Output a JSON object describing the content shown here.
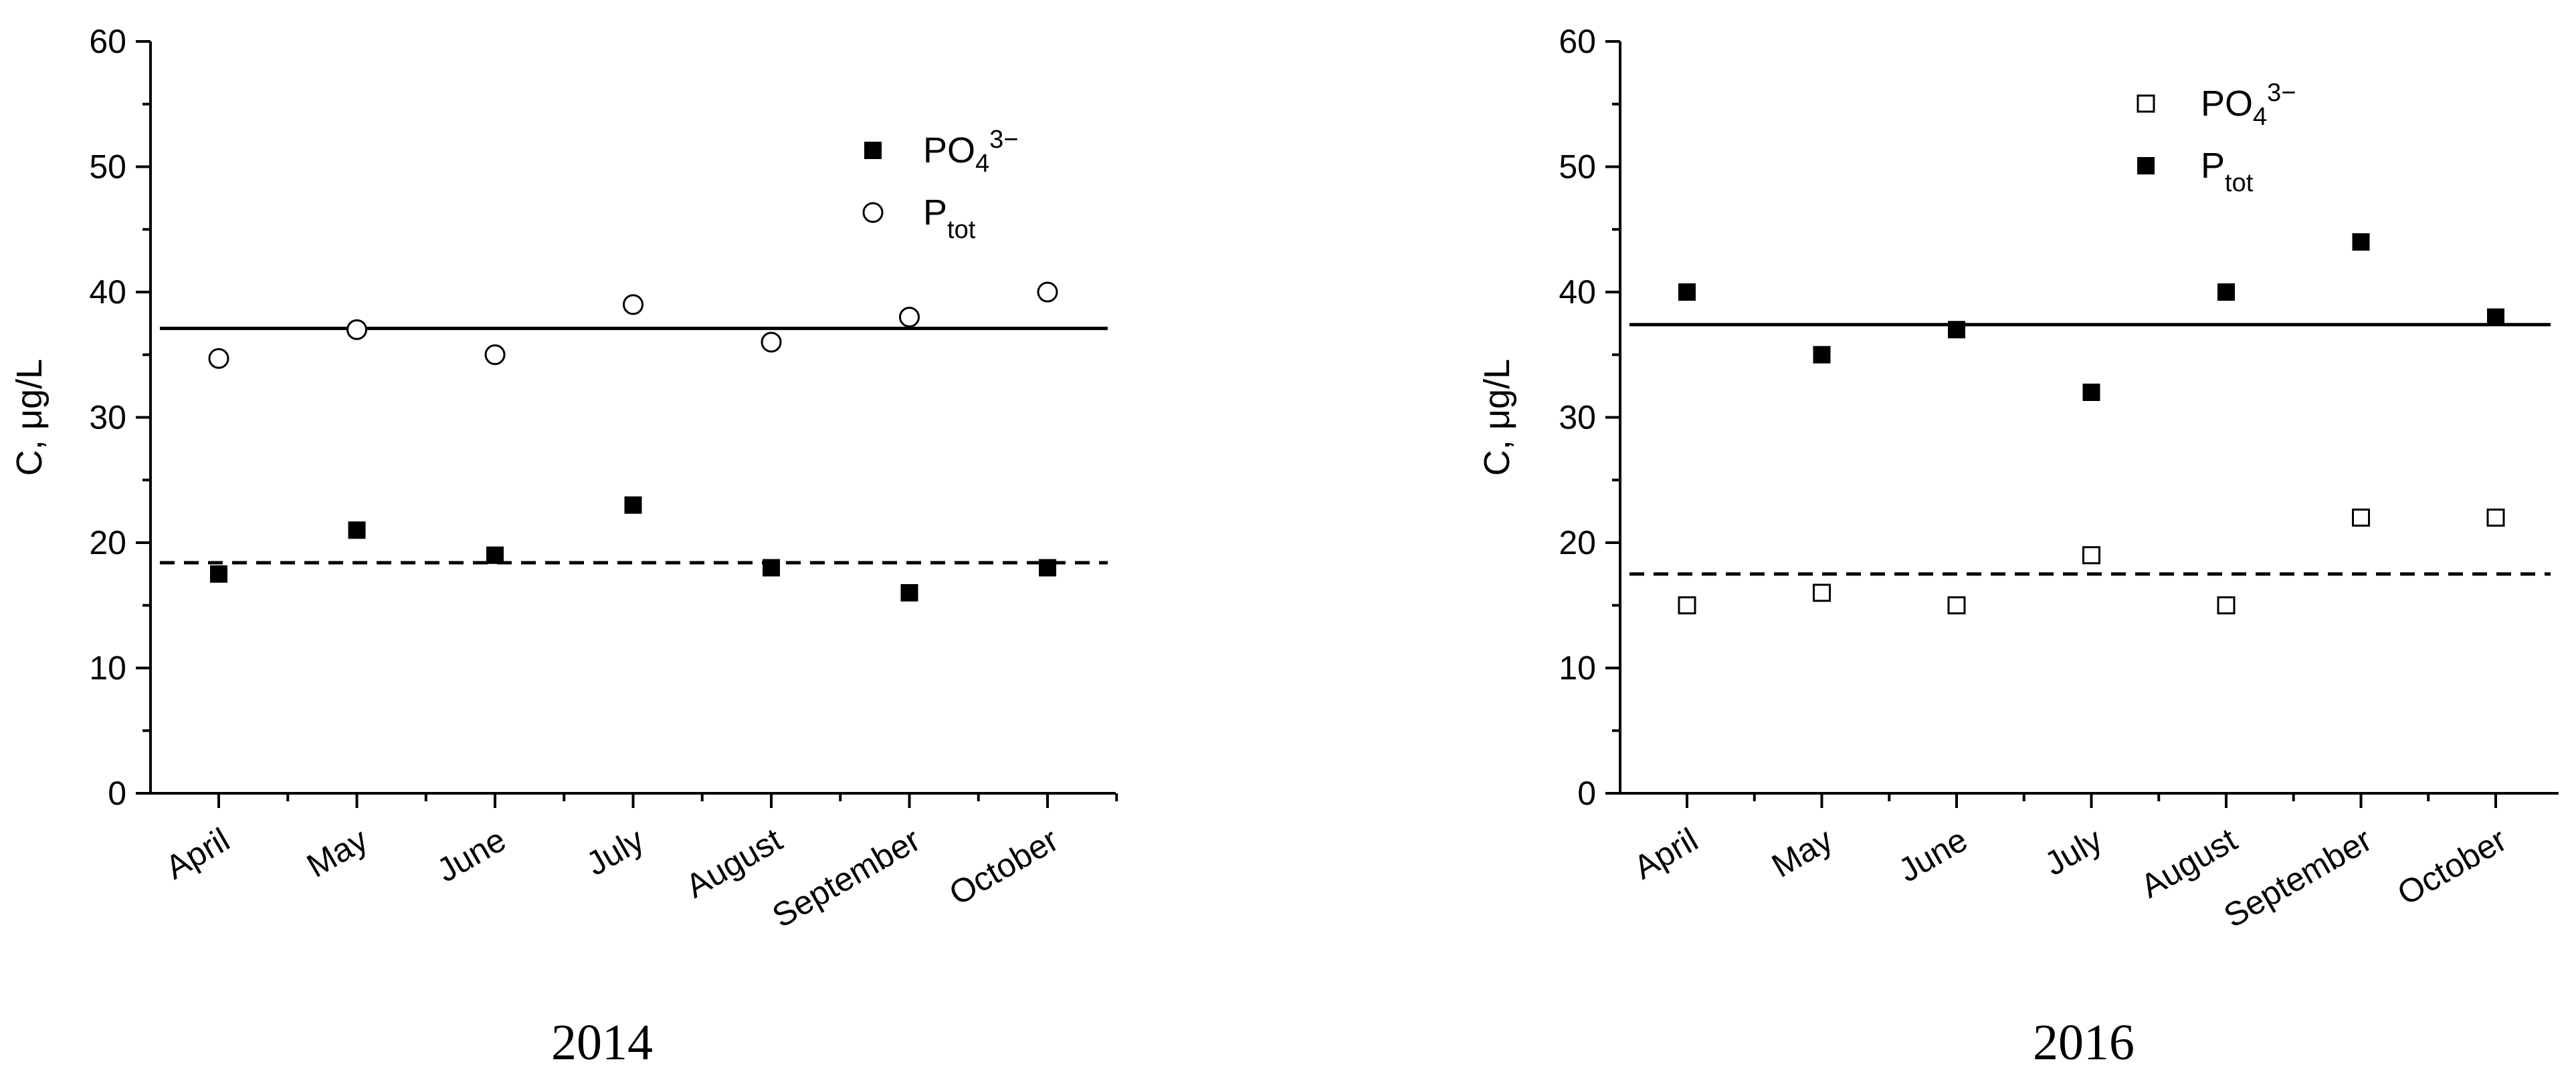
{
  "colors": {
    "ink": "#000000",
    "background": "#ffffff"
  },
  "chart_data": [
    {
      "type": "scatter",
      "caption": "2014",
      "ylabel": "C, μg/L",
      "ylim": [
        0,
        60
      ],
      "yticks": [
        0,
        10,
        20,
        30,
        40,
        50,
        60
      ],
      "categories": [
        "April",
        "May",
        "June",
        "July",
        "August",
        "September",
        "October"
      ],
      "legend": {
        "placement": "top-right",
        "entries": [
          "PO₄³⁻",
          "Ptot"
        ]
      },
      "series": [
        {
          "name": "PO₄³⁻",
          "marker": "filled-square",
          "values": [
            17.5,
            21,
            19,
            23,
            18,
            16,
            18
          ]
        },
        {
          "name": "Ptot",
          "marker": "open-circle",
          "values": [
            34.7,
            37,
            35,
            39,
            36,
            38,
            40
          ]
        }
      ],
      "reference_lines": [
        {
          "style": "solid",
          "value": 37.1
        },
        {
          "style": "dashed",
          "value": 18.4
        }
      ]
    },
    {
      "type": "scatter",
      "caption": "2016",
      "ylabel": "C, μg/L",
      "ylim": [
        0,
        60
      ],
      "yticks": [
        0,
        10,
        20,
        30,
        40,
        50,
        60
      ],
      "categories": [
        "April",
        "May",
        "June",
        "July",
        "August",
        "September",
        "October"
      ],
      "legend": {
        "placement": "top-right",
        "entries": [
          "PO₄³⁻",
          "Ptot"
        ]
      },
      "series": [
        {
          "name": "PO₄³⁻",
          "marker": "open-square",
          "values": [
            15,
            16,
            15,
            19,
            15,
            22,
            22
          ]
        },
        {
          "name": "Ptot",
          "marker": "filled-square",
          "values": [
            40,
            35,
            37,
            32,
            40,
            44,
            38
          ]
        }
      ],
      "reference_lines": [
        {
          "style": "solid",
          "value": 37.4
        },
        {
          "style": "dashed",
          "value": 17.5
        }
      ]
    }
  ]
}
